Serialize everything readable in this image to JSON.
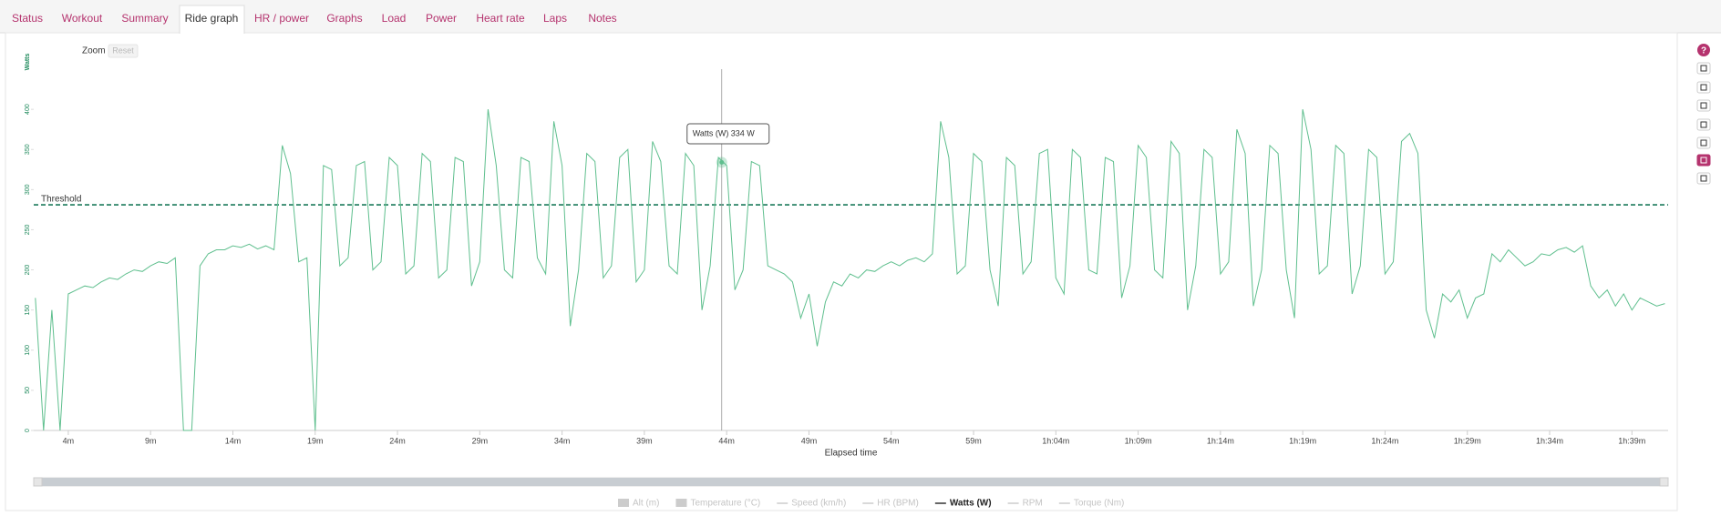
{
  "tabs": [
    "Status",
    "Workout",
    "Summary",
    "Ride graph",
    "HR / power",
    "Graphs",
    "Load",
    "Power",
    "Heart rate",
    "Laps",
    "Notes"
  ],
  "active_tab": "Ride graph",
  "help_icon": "?",
  "chart_data": {
    "type": "line",
    "zoom_label": "Zoom",
    "reset_label": "Reset",
    "y_label": "Watts",
    "x_label": "Elapsed time",
    "xlim": [
      1.9,
      101.2
    ],
    "ylim": [
      0,
      450
    ],
    "yticks": [
      0,
      50,
      100,
      150,
      200,
      250,
      300,
      350,
      400
    ],
    "xticks": [
      {
        "value": 4,
        "label": "4m"
      },
      {
        "value": 9,
        "label": "9m"
      },
      {
        "value": 14,
        "label": "14m"
      },
      {
        "value": 19,
        "label": "19m"
      },
      {
        "value": 24,
        "label": "24m"
      },
      {
        "value": 29,
        "label": "29m"
      },
      {
        "value": 34,
        "label": "34m"
      },
      {
        "value": 39,
        "label": "39m"
      },
      {
        "value": 44,
        "label": "44m"
      },
      {
        "value": 49,
        "label": "49m"
      },
      {
        "value": 54,
        "label": "54m"
      },
      {
        "value": 59,
        "label": "59m"
      },
      {
        "value": 64,
        "label": "1h:04m"
      },
      {
        "value": 69,
        "label": "1h:09m"
      },
      {
        "value": 74,
        "label": "1h:14m"
      },
      {
        "value": 79,
        "label": "1h:19m"
      },
      {
        "value": 84,
        "label": "1h:24m"
      },
      {
        "value": 89,
        "label": "1h:29m"
      },
      {
        "value": 94,
        "label": "1h:34m"
      },
      {
        "value": 99,
        "label": "1h:39m"
      }
    ],
    "threshold": {
      "label": "Threshold",
      "value": 281,
      "color": "#1a7a5a"
    },
    "tooltip": {
      "x": 43.7,
      "value": 334,
      "value_label": "334 W"
    },
    "x": [
      2,
      2.5,
      3,
      3.5,
      4,
      4.5,
      5,
      5.5,
      6,
      6.5,
      7,
      7.5,
      8,
      8.5,
      9,
      9.5,
      10,
      10.5,
      11,
      11.5,
      12,
      12.5,
      13,
      13.5,
      14,
      14.5,
      15,
      15.5,
      16,
      16.5,
      17,
      17.5,
      18,
      18.5,
      19,
      19.5,
      20,
      20.5,
      21,
      21.5,
      22,
      22.5,
      23,
      23.5,
      24,
      24.5,
      25,
      25.5,
      26,
      26.5,
      27,
      27.5,
      28,
      28.5,
      29,
      29.5,
      30,
      30.5,
      31,
      31.5,
      32,
      32.5,
      33,
      33.5,
      34,
      34.5,
      35,
      35.5,
      36,
      36.5,
      37,
      37.5,
      38,
      38.5,
      39,
      39.5,
      40,
      40.5,
      41,
      41.5,
      42,
      42.5,
      43,
      43.5,
      44,
      44.5,
      45,
      45.5,
      46,
      46.5,
      47,
      47.5,
      48,
      48.5,
      49,
      49.5,
      50,
      50.5,
      51,
      51.5,
      52,
      52.5,
      53,
      53.5,
      54,
      54.5,
      55,
      55.5,
      56,
      56.5,
      57,
      57.5,
      58,
      58.5,
      59,
      59.5,
      60,
      60.5,
      61,
      61.5,
      62,
      62.5,
      63,
      63.5,
      64,
      64.5,
      65,
      65.5,
      66,
      66.5,
      67,
      67.5,
      68,
      68.5,
      69,
      69.5,
      70,
      70.5,
      71,
      71.5,
      72,
      72.5,
      73,
      73.5,
      74,
      74.5,
      75,
      75.5,
      76,
      76.5,
      77,
      77.5,
      78,
      78.5,
      79,
      79.5,
      80,
      80.5,
      81,
      81.5,
      82,
      82.5,
      83,
      83.5,
      84,
      84.5,
      85,
      85.5,
      86,
      86.5,
      87,
      87.5,
      88,
      88.5,
      89,
      89.5,
      90,
      90.5,
      91,
      91.5,
      92,
      92.5,
      93,
      93.5,
      94,
      94.5,
      95,
      95.5,
      96,
      96.5,
      97,
      97.5,
      98,
      98.5,
      99,
      99.5,
      100,
      100.5,
      101
    ],
    "series": [
      {
        "name": "Watts (W)",
        "color": "#5fbf8e",
        "values": [
          165,
          0,
          150,
          0,
          170,
          175,
          180,
          178,
          185,
          190,
          188,
          195,
          200,
          198,
          205,
          210,
          208,
          215,
          0,
          0,
          205,
          220,
          225,
          225,
          230,
          228,
          232,
          226,
          230,
          225,
          355,
          320,
          210,
          215,
          0,
          330,
          325,
          205,
          215,
          330,
          335,
          200,
          210,
          340,
          330,
          195,
          205,
          345,
          335,
          190,
          200,
          340,
          335,
          180,
          210,
          400,
          330,
          200,
          190,
          340,
          335,
          215,
          195,
          385,
          330,
          130,
          200,
          345,
          335,
          190,
          205,
          340,
          350,
          185,
          200,
          360,
          335,
          205,
          195,
          345,
          330,
          150,
          205,
          340,
          330,
          175,
          200,
          335,
          330,
          205,
          200,
          195,
          185,
          140,
          170,
          105,
          160,
          185,
          180,
          195,
          190,
          200,
          198,
          205,
          210,
          205,
          212,
          215,
          210,
          220,
          385,
          340,
          195,
          205,
          345,
          335,
          200,
          155,
          340,
          330,
          195,
          210,
          345,
          350,
          190,
          170,
          350,
          340,
          200,
          195,
          340,
          335,
          165,
          205,
          355,
          340,
          200,
          190,
          360,
          345,
          150,
          205,
          350,
          340,
          195,
          210,
          375,
          345,
          155,
          200,
          355,
          345,
          200,
          140,
          400,
          350,
          195,
          205,
          355,
          345,
          170,
          205,
          350,
          340,
          195,
          210,
          360,
          370,
          345,
          150,
          115,
          170,
          160,
          175,
          140,
          165,
          170,
          220,
          210,
          225,
          215,
          205,
          210,
          220,
          218,
          225,
          228,
          222,
          230,
          180,
          165,
          175,
          155,
          170,
          150,
          165,
          160,
          155,
          158
        ]
      }
    ],
    "hidden_series": [
      {
        "name": "Alt (m)",
        "style": "area"
      },
      {
        "name": "Temperature (°C)",
        "style": "area"
      },
      {
        "name": "Speed (km/h)",
        "style": "line"
      },
      {
        "name": "HR (BPM)",
        "style": "line"
      },
      {
        "name": "RPM",
        "style": "line"
      },
      {
        "name": "Torque (Nm)",
        "style": "line"
      }
    ]
  }
}
